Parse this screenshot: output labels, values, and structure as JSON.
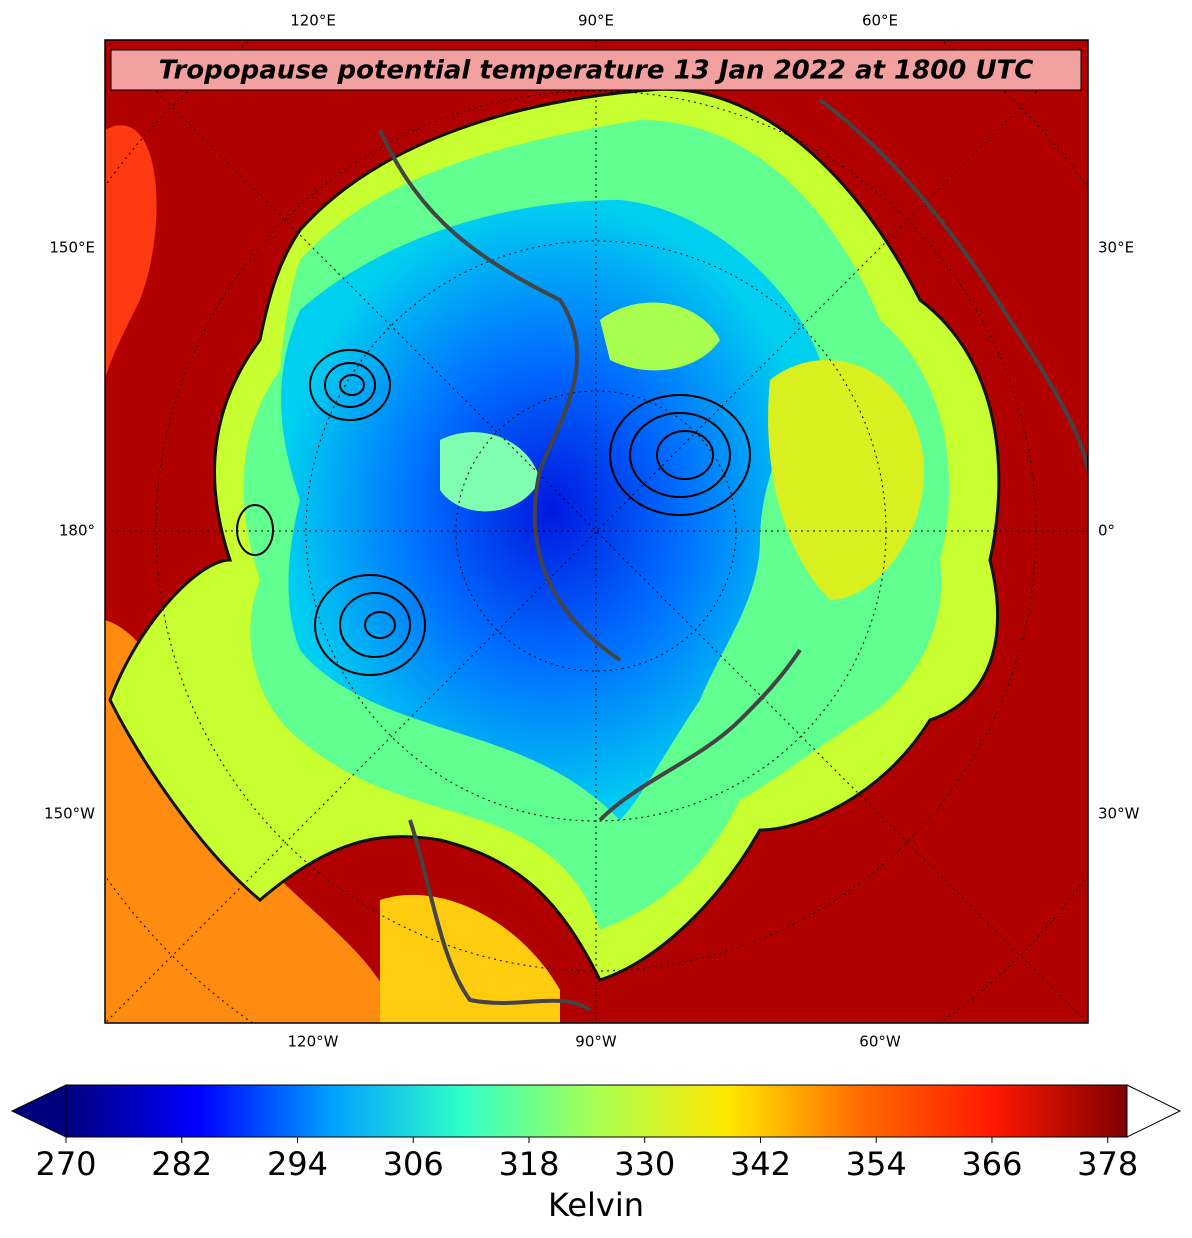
{
  "header": {
    "title": "Tropopause potential temperature 13 Jan 2022 at 1800 UTC"
  },
  "map": {
    "labels": {
      "top": [
        "120°E",
        "90°E",
        "60°E"
      ],
      "left": [
        "150°E",
        "180°",
        "150°W"
      ],
      "right": [
        "30°E",
        "0°",
        "30°W"
      ],
      "bottom": [
        "120°W",
        "90°W",
        "60°W"
      ]
    }
  },
  "colorbar": {
    "label": "Kelvin",
    "lim": [
      270,
      380
    ],
    "ticks": [
      270,
      282,
      294,
      306,
      318,
      330,
      342,
      354,
      366,
      378
    ],
    "colormap": [
      "#00007f",
      "#0000ff",
      "#00a0ff",
      "#30ffc8",
      "#a8ff50",
      "#ffe600",
      "#ff6a00",
      "#ff1800",
      "#7f0000"
    ],
    "extend_low_color": "#00007f",
    "extend_high_color": "#ffffff"
  }
}
